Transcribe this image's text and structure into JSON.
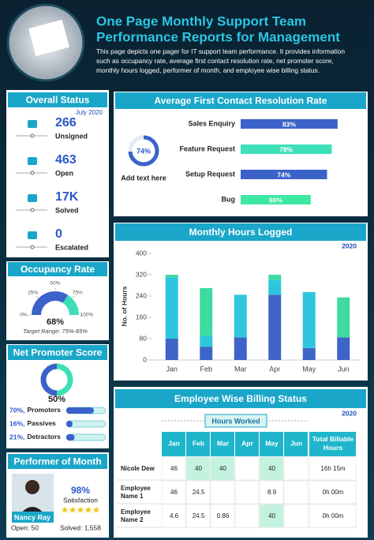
{
  "header": {
    "title": [
      "One Page Monthly Support Team",
      "Performance Reports for Management"
    ],
    "description": [
      "This page depicts one pager for IT support team performance. It provides information",
      "such as occupancy rate, average first contact resolution rate, net promoter score,",
      "monthly hours logged, performer of month, and employee wise billing status."
    ]
  },
  "overall_status": {
    "title": "Overall Status",
    "date": "July 2020",
    "items": [
      {
        "value": "266",
        "label": "Unsigned"
      },
      {
        "value": "463",
        "label": "Open"
      },
      {
        "value": "17K",
        "label": "Solved"
      },
      {
        "value": "0",
        "label": "Escalated"
      }
    ]
  },
  "occupancy": {
    "title": "Occupancy Rate",
    "value": 68,
    "value_label": "68%",
    "ticks": [
      {
        "value": 0,
        "label": "0%"
      },
      {
        "value": 25,
        "label": "25%"
      },
      {
        "value": 50,
        "label": "50%"
      },
      {
        "value": 75,
        "label": "75%"
      },
      {
        "value": 100,
        "label": "100%"
      }
    ],
    "target": "Target Range: 75%-85%"
  },
  "nps": {
    "title": "Net Promoter Score",
    "value": 50,
    "value_label": "50%",
    "rows": [
      {
        "value": 70,
        "value_label": "70%,",
        "name": "Promoters"
      },
      {
        "value": 16,
        "value_label": "16%,",
        "name": "Passives"
      },
      {
        "value": 21,
        "value_label": "21%,",
        "name": "Detractors"
      }
    ]
  },
  "performer": {
    "title": "Performer of Month",
    "name": "Nancy Ray",
    "satisfaction": 98,
    "satisfaction_label": "98%",
    "satisfaction_text": "Satisfaction",
    "open": "Open: 50",
    "solved": "Solved: 1,558"
  },
  "fcr": {
    "title": "Average First Contact Resolution Rate",
    "donut_value": 74,
    "donut_label": "74%",
    "caption": "Add text here",
    "categories": [
      "Sales Enquiry",
      "Feature Request",
      "Setup Request",
      "Bug"
    ],
    "values": [
      83,
      78,
      74,
      60
    ],
    "value_labels": [
      "83%",
      "78%",
      "74%",
      "60%"
    ],
    "colors": [
      "#3b62c9",
      "#3ee0b8",
      "#3b62c9",
      "#3ee8a2"
    ]
  },
  "monthly_hours": {
    "type": "bar",
    "stacked": true,
    "title": "Monthly Hours Logged",
    "year": "2020",
    "y_label": "No. of Hours",
    "categories": [
      "Jan",
      "Feb",
      "Mar",
      "Apr",
      "May",
      "Jun"
    ],
    "ylim": [
      0,
      400
    ],
    "yticks": [
      0,
      80,
      160,
      240,
      320,
      400
    ],
    "series": [
      {
        "color": "#3e64c8",
        "values": [
          80,
          50,
          85,
          245,
          45,
          85
        ]
      },
      {
        "color": "#2ec6dc",
        "values": [
          230,
          40,
          160,
          55,
          210,
          0
        ]
      },
      {
        "color": "#3ddba0",
        "values": [
          10,
          180,
          0,
          20,
          0,
          150
        ]
      }
    ]
  },
  "billing": {
    "title": "Employee Wise Billing Status",
    "year": "2020",
    "group_header": "Hours Worked",
    "columns": [
      "Jan",
      "Feb",
      "Mar",
      "Apr",
      "May",
      "Jun",
      "Total Billable Hours"
    ],
    "rows": [
      {
        "name": [
          "Nicole Dew"
        ],
        "cells": [
          "46",
          "40",
          "40",
          null,
          "40",
          null,
          "16h 15m"
        ]
      },
      {
        "name": [
          "Employee",
          "Name 1"
        ],
        "cells": [
          "46",
          "24.5",
          null,
          null,
          "8.9",
          null,
          "0h 00m"
        ]
      },
      {
        "name": [
          "Employee",
          "Name 2"
        ],
        "cells": [
          "4.6",
          "24.5",
          "0.86",
          null,
          "40",
          null,
          "0h 00m"
        ]
      }
    ]
  }
}
